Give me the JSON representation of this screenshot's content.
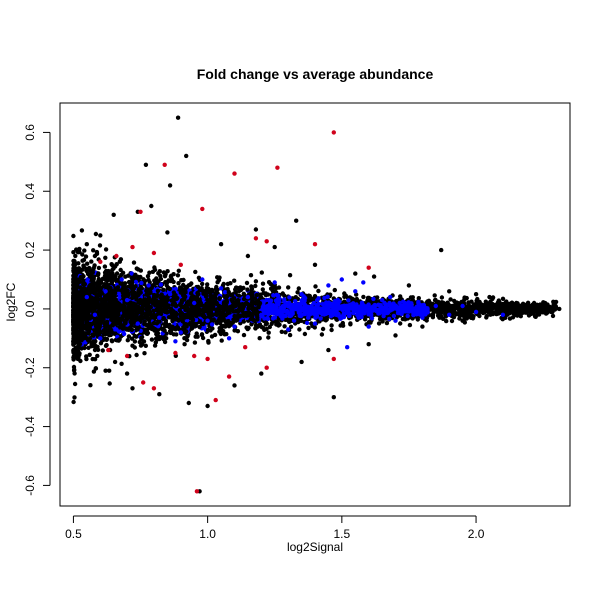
{
  "chart_data": {
    "type": "scatter",
    "title": "Fold change vs average abundance",
    "xlabel": "log2Signal",
    "ylabel": "log2FC",
    "xlim": [
      0.45,
      2.35
    ],
    "ylim": [
      -0.67,
      0.7
    ],
    "xticks": [
      0.5,
      1.0,
      1.5,
      2.0
    ],
    "xtick_labels": [
      "0.5",
      "1.0",
      "1.5",
      "2.0"
    ],
    "yticks": [
      -0.6,
      -0.4,
      -0.2,
      0.0,
      0.2,
      0.4,
      0.6
    ],
    "ytick_labels": [
      "-0.6",
      "-0.4",
      "-0.2",
      "0.0",
      "0.2",
      "0.4",
      "0.6"
    ],
    "grid": false,
    "legend": "none",
    "series_colors": {
      "black": "#000000",
      "blue": "#0000ff",
      "red": "#d0021b"
    },
    "series": [
      {
        "color": "#000000",
        "points": [
          [
            0.89,
            0.65
          ],
          [
            0.92,
            0.52
          ],
          [
            0.77,
            0.49
          ],
          [
            0.86,
            0.42
          ],
          [
            0.79,
            0.35
          ],
          [
            0.74,
            0.33
          ],
          [
            1.33,
            0.3
          ],
          [
            0.65,
            0.32
          ],
          [
            1.18,
            0.27
          ],
          [
            1.87,
            0.2
          ],
          [
            0.97,
            -0.62
          ],
          [
            1.0,
            -0.33
          ],
          [
            0.93,
            -0.32
          ],
          [
            1.47,
            -0.3
          ],
          [
            0.82,
            -0.29
          ],
          [
            1.1,
            -0.26
          ],
          [
            0.72,
            -0.27
          ],
          [
            0.6,
            0.25
          ],
          [
            0.55,
            0.22
          ],
          [
            0.62,
            -0.21
          ],
          [
            0.58,
            0.18
          ],
          [
            0.85,
            0.26
          ],
          [
            1.05,
            0.22
          ],
          [
            1.25,
            0.21
          ],
          [
            1.4,
            0.15
          ],
          [
            1.55,
            0.12
          ],
          [
            1.62,
            0.11
          ],
          [
            1.75,
            0.08
          ],
          [
            1.9,
            0.06
          ],
          [
            2.0,
            0.05
          ],
          [
            2.05,
            0.04
          ],
          [
            2.15,
            0.02
          ],
          [
            2.25,
            0.01
          ],
          [
            2.31,
            0.0
          ],
          [
            2.28,
            -0.01
          ],
          [
            2.1,
            -0.02
          ],
          [
            1.95,
            -0.04
          ],
          [
            1.8,
            -0.06
          ],
          [
            1.7,
            -0.09
          ],
          [
            1.6,
            -0.12
          ],
          [
            1.45,
            -0.14
          ],
          [
            1.35,
            -0.18
          ],
          [
            1.2,
            -0.22
          ],
          [
            1.15,
            0.18
          ],
          [
            0.7,
            -0.22
          ]
        ]
      },
      {
        "color": "#0000ff",
        "points": [
          [
            0.55,
            0.04
          ],
          [
            0.58,
            -0.02
          ],
          [
            0.62,
            0.06
          ],
          [
            0.66,
            -0.07
          ],
          [
            0.7,
            0.03
          ],
          [
            0.74,
            -0.05
          ],
          [
            0.78,
            0.08
          ],
          [
            0.82,
            -0.03
          ],
          [
            0.86,
            0.05
          ],
          [
            0.9,
            -0.08
          ],
          [
            0.95,
            0.02
          ],
          [
            1.0,
            -0.04
          ],
          [
            1.05,
            0.07
          ],
          [
            1.1,
            -0.06
          ],
          [
            1.15,
            0.04
          ],
          [
            1.2,
            -0.02
          ],
          [
            1.25,
            0.09
          ],
          [
            1.3,
            -0.07
          ],
          [
            1.35,
            0.05
          ],
          [
            1.4,
            -0.05
          ],
          [
            1.45,
            0.08
          ],
          [
            1.5,
            -0.03
          ],
          [
            1.55,
            0.06
          ],
          [
            1.6,
            -0.06
          ],
          [
            1.65,
            0.03
          ],
          [
            1.7,
            -0.04
          ],
          [
            1.75,
            0.02
          ],
          [
            1.8,
            -0.03
          ],
          [
            1.85,
            0.01
          ],
          [
            1.9,
            -0.02
          ],
          [
            1.95,
            0.01
          ],
          [
            2.0,
            -0.01
          ],
          [
            2.1,
            -0.02
          ],
          [
            1.5,
            0.1
          ],
          [
            1.58,
            0.09
          ],
          [
            0.6,
            -0.1
          ],
          [
            0.68,
            0.1
          ],
          [
            0.88,
            -0.11
          ],
          [
            0.98,
            0.1
          ],
          [
            1.08,
            -0.1
          ],
          [
            1.52,
            -0.13
          ],
          [
            1.68,
            0.04
          ]
        ]
      },
      {
        "color": "#d0021b",
        "points": [
          [
            1.47,
            0.6
          ],
          [
            0.84,
            0.49
          ],
          [
            1.26,
            0.48
          ],
          [
            1.1,
            0.46
          ],
          [
            0.98,
            0.34
          ],
          [
            0.75,
            0.33
          ],
          [
            1.4,
            0.22
          ],
          [
            1.18,
            0.24
          ],
          [
            1.22,
            0.23
          ],
          [
            0.72,
            0.21
          ],
          [
            0.6,
            0.16
          ],
          [
            0.66,
            0.18
          ],
          [
            0.8,
            0.19
          ],
          [
            0.9,
            0.15
          ],
          [
            1.6,
            0.14
          ],
          [
            0.96,
            -0.62
          ],
          [
            1.03,
            -0.31
          ],
          [
            0.8,
            -0.27
          ],
          [
            0.76,
            -0.25
          ],
          [
            1.22,
            -0.2
          ],
          [
            1.47,
            -0.17
          ],
          [
            1.0,
            -0.17
          ],
          [
            0.88,
            -0.15
          ],
          [
            0.7,
            -0.16
          ],
          [
            0.63,
            -0.14
          ],
          [
            1.08,
            -0.23
          ],
          [
            0.95,
            -0.16
          ],
          [
            1.14,
            -0.13
          ]
        ]
      }
    ],
    "dense_cloud": true
  }
}
